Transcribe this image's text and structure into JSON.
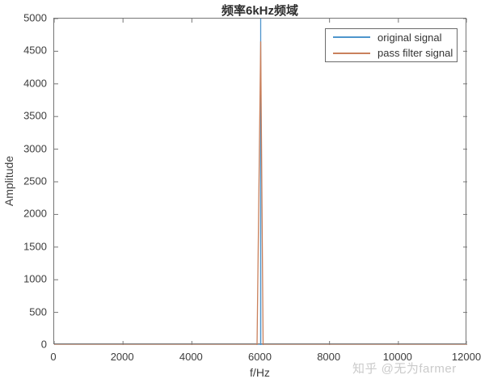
{
  "figure": {
    "background": "#ffffff"
  },
  "watermark": "知乎 @无为farmer",
  "colors": {
    "axis": "#757575",
    "tick_text": "#3d3d3d",
    "title_text": "#2e2e2e",
    "watermark_text": "#c6c6c6",
    "original_signal": "#4e95cc",
    "pass_filter_signal": "#c9805c"
  },
  "chart_data": {
    "type": "line",
    "title": "频率6kHz频域",
    "xlabel": "f/Hz",
    "ylabel": "Amplitude",
    "xlim": [
      0,
      12000
    ],
    "ylim": [
      0,
      5000
    ],
    "x_ticks": [
      0,
      2000,
      4000,
      6000,
      8000,
      10000,
      12000
    ],
    "y_ticks": [
      0,
      500,
      1000,
      1500,
      2000,
      2500,
      3000,
      3500,
      4000,
      4500,
      5000
    ],
    "grid": false,
    "box": true,
    "tick_direction": "in",
    "legend_position": "northeast",
    "series": [
      {
        "name": "original signal",
        "color": "#4e95cc",
        "peak_x": 6000,
        "peak_y": 5000,
        "points": [
          [
            0,
            0
          ],
          [
            5997,
            0
          ],
          [
            6000,
            5000
          ],
          [
            6003,
            0
          ],
          [
            12000,
            0
          ]
        ]
      },
      {
        "name": "pass filter signal",
        "color": "#c9805c",
        "peak_x": 6000,
        "peak_y": 4650,
        "points": [
          [
            0,
            0
          ],
          [
            5894,
            0
          ],
          [
            6000,
            4650
          ],
          [
            6071,
            0
          ],
          [
            12000,
            0
          ]
        ]
      }
    ]
  }
}
